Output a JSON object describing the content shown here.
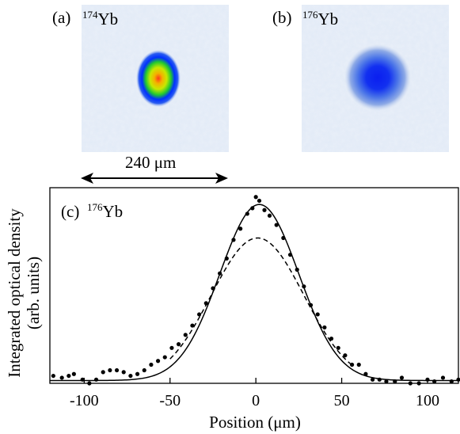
{
  "panels": [
    {
      "label": "(a)",
      "isotope_mass": "174",
      "isotope_symbol": "Yb"
    },
    {
      "label": "(b)",
      "isotope_mass": "176",
      "isotope_symbol": "Yb"
    }
  ],
  "scale_bar": {
    "text": "240 μm",
    "length_um": 240
  },
  "chart_data": {
    "type": "scatter",
    "panel_label": "(c)",
    "isotope_mass": "176",
    "isotope_symbol": "Yb",
    "xlabel": "Position (μm)",
    "ylabel_line1": "Integrated optical density",
    "ylabel_line2": "(arb. units)",
    "xlim": [
      -120,
      118
    ],
    "ylim": [
      0,
      1.05
    ],
    "xticks": [
      -100,
      -50,
      0,
      50,
      100
    ],
    "xtick_labels": [
      "-100",
      "-50",
      "0",
      "50",
      "100"
    ],
    "series": [
      {
        "style": "points",
        "points": [
          [
            -118,
            0.04
          ],
          [
            -113,
            0.03
          ],
          [
            -109,
            0.04
          ],
          [
            -106,
            0.05
          ],
          [
            -101,
            0.02
          ],
          [
            -97,
            0.0
          ],
          [
            -93,
            0.02
          ],
          [
            -89,
            0.06
          ],
          [
            -85,
            0.07
          ],
          [
            -81,
            0.07
          ],
          [
            -77,
            0.06
          ],
          [
            -73,
            0.04
          ],
          [
            -69,
            0.05
          ],
          [
            -65,
            0.07
          ],
          [
            -61,
            0.1
          ],
          [
            -57,
            0.12
          ],
          [
            -53,
            0.14
          ],
          [
            -49,
            0.19
          ],
          [
            -45,
            0.21
          ],
          [
            -41,
            0.26
          ],
          [
            -37,
            0.31
          ],
          [
            -33,
            0.37
          ],
          [
            -29,
            0.43
          ],
          [
            -25,
            0.51
          ],
          [
            -21,
            0.59
          ],
          [
            -17,
            0.67
          ],
          [
            -13,
            0.77
          ],
          [
            -9,
            0.83
          ],
          [
            -5,
            0.91
          ],
          [
            -2,
            0.94
          ],
          [
            0,
            1.0
          ],
          [
            2,
            0.98
          ],
          [
            5,
            0.93
          ],
          [
            8,
            0.9
          ],
          [
            12,
            0.85
          ],
          [
            16,
            0.78
          ],
          [
            20,
            0.69
          ],
          [
            24,
            0.61
          ],
          [
            28,
            0.52
          ],
          [
            32,
            0.42
          ],
          [
            36,
            0.37
          ],
          [
            40,
            0.3
          ],
          [
            44,
            0.24
          ],
          [
            48,
            0.19
          ],
          [
            52,
            0.15
          ],
          [
            56,
            0.1
          ],
          [
            60,
            0.1
          ],
          [
            64,
            0.05
          ],
          [
            68,
            0.02
          ],
          [
            72,
            0.02
          ],
          [
            76,
            0.01
          ],
          [
            81,
            0.01
          ],
          [
            85,
            0.03
          ],
          [
            90,
            0.0
          ],
          [
            95,
            0.0
          ],
          [
            100,
            0.02
          ],
          [
            104,
            0.01
          ],
          [
            109,
            0.03
          ],
          [
            114,
            0.01
          ],
          [
            118,
            0.02
          ]
        ]
      },
      {
        "style": "solid",
        "model": "gaussian",
        "amplitude": 0.945,
        "center": 2,
        "sigma": 23,
        "offset": 0.015
      },
      {
        "style": "dashed",
        "model": "gaussian",
        "amplitude": 0.78,
        "center": 1,
        "sigma": 27,
        "offset": 0.0,
        "xrange": [
          -50,
          55
        ]
      }
    ]
  }
}
